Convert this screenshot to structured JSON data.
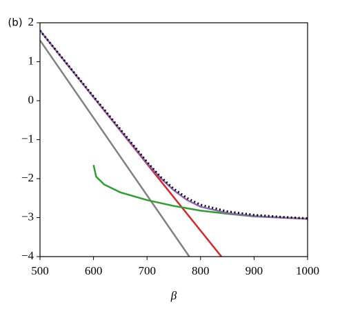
{
  "chart_data": {
    "type": "line",
    "panel_label": "(b)",
    "x_label": "β",
    "xlim": [
      500,
      1000
    ],
    "ylim": [
      -4,
      2
    ],
    "xticks": [
      500,
      600,
      700,
      800,
      900,
      1000
    ],
    "yticks": [
      {
        "value": -4,
        "label": "−4"
      },
      {
        "value": -3,
        "label": "−3"
      },
      {
        "value": -2,
        "label": "−2"
      },
      {
        "value": -1,
        "label": "−1"
      },
      0,
      1,
      2
    ],
    "series": [
      {
        "color": "#808080",
        "x": [
          500,
          779
        ],
        "values": [
          1.55,
          -4
        ]
      },
      {
        "color": "#d62728",
        "x": [
          500,
          839
        ],
        "values": [
          1.8,
          -4
        ]
      },
      {
        "color": "#2ca02c",
        "x": [
          600,
          605,
          620,
          650,
          700,
          750,
          800,
          850,
          900,
          950,
          1000
        ],
        "values": [
          -1.65,
          -1.95,
          -2.15,
          -2.35,
          -2.55,
          -2.7,
          -2.82,
          -2.9,
          -2.97,
          -3.0,
          -3.03
        ]
      },
      {
        "color": "#9467bd",
        "x": [
          500,
          600,
          700,
          725,
          750,
          775,
          800,
          850,
          900,
          950,
          1000
        ],
        "values": [
          1.8,
          0.09,
          -1.6,
          -1.98,
          -2.3,
          -2.55,
          -2.72,
          -2.88,
          -2.96,
          -3.0,
          -3.03
        ]
      },
      {
        "color": "#000000",
        "dashed": true,
        "x": [
          500,
          600,
          700,
          725,
          750,
          775,
          800,
          850,
          900,
          950,
          1000
        ],
        "values": [
          1.8,
          0.11,
          -1.57,
          -1.95,
          -2.26,
          -2.5,
          -2.67,
          -2.84,
          -2.93,
          -2.98,
          -3.02
        ]
      }
    ]
  }
}
